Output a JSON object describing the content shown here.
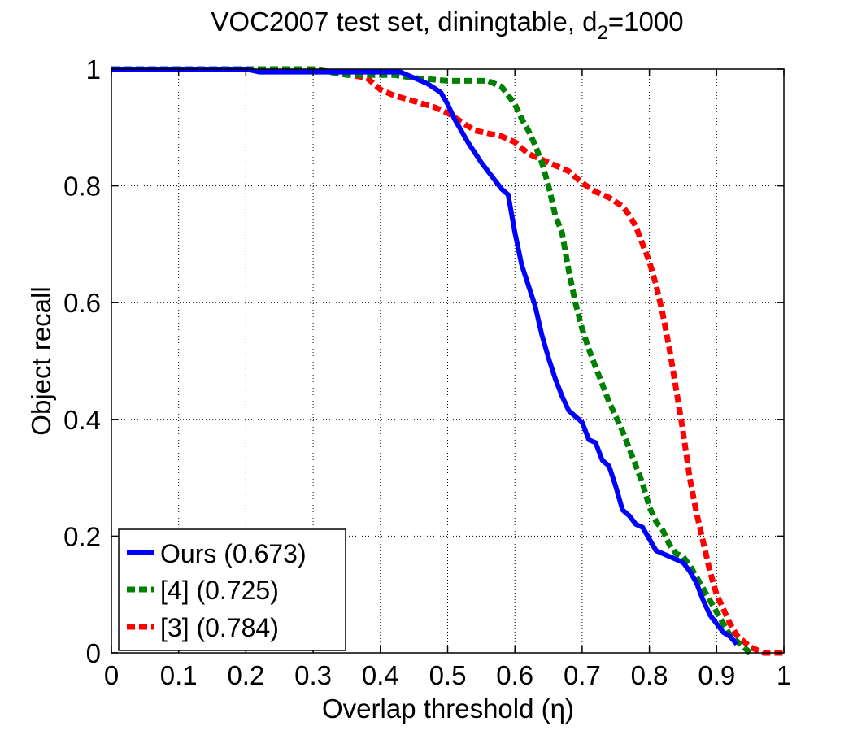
{
  "chart_data": {
    "type": "line",
    "title": "VOC2007 test set, diningtable, d",
    "title_sub": "2",
    "title_suffix": "=1000",
    "xlabel": "Overlap threshold (η)",
    "ylabel": "Object recall",
    "xlim": [
      0,
      1
    ],
    "ylim": [
      0,
      1
    ],
    "grid": true,
    "legend_position": "bottom-left",
    "x_ticks": [
      "0",
      "0.1",
      "0.2",
      "0.3",
      "0.4",
      "0.5",
      "0.6",
      "0.7",
      "0.8",
      "0.9",
      "1"
    ],
    "x_tick_values": [
      0,
      0.1,
      0.2,
      0.3,
      0.4,
      0.5,
      0.6,
      0.7,
      0.8,
      0.9,
      1
    ],
    "y_ticks": [
      "0",
      "0.2",
      "0.4",
      "0.6",
      "0.8",
      "1"
    ],
    "y_tick_values": [
      0,
      0.2,
      0.4,
      0.6,
      0.8,
      1
    ],
    "series": [
      {
        "name": "Ours",
        "legend_label": "Ours (0.673)",
        "color": "#0000ff",
        "style": "solid",
        "x": [
          0,
          0.2,
          0.22,
          0.3,
          0.43,
          0.45,
          0.47,
          0.49,
          0.5,
          0.51,
          0.53,
          0.55,
          0.57,
          0.58,
          0.59,
          0.6,
          0.61,
          0.62,
          0.63,
          0.64,
          0.65,
          0.66,
          0.67,
          0.68,
          0.69,
          0.7,
          0.71,
          0.72,
          0.73,
          0.74,
          0.75,
          0.76,
          0.77,
          0.78,
          0.79,
          0.8,
          0.81,
          0.82,
          0.84,
          0.85,
          0.86,
          0.87,
          0.88,
          0.89,
          0.9,
          0.91,
          0.92,
          0.93
        ],
        "y": [
          1,
          1,
          0.995,
          0.995,
          0.995,
          0.985,
          0.975,
          0.96,
          0.94,
          0.915,
          0.875,
          0.84,
          0.81,
          0.795,
          0.785,
          0.72,
          0.665,
          0.63,
          0.595,
          0.545,
          0.505,
          0.47,
          0.44,
          0.415,
          0.405,
          0.395,
          0.365,
          0.36,
          0.33,
          0.32,
          0.285,
          0.245,
          0.235,
          0.22,
          0.215,
          0.195,
          0.175,
          0.17,
          0.16,
          0.155,
          0.14,
          0.12,
          0.09,
          0.065,
          0.05,
          0.035,
          0.028,
          0.015
        ]
      },
      {
        "name": "[4]",
        "legend_label": "[4] (0.725)",
        "color": "#008000",
        "style": "dashed",
        "x": [
          0,
          0.3,
          0.35,
          0.42,
          0.45,
          0.5,
          0.56,
          0.58,
          0.59,
          0.6,
          0.61,
          0.62,
          0.63,
          0.64,
          0.65,
          0.66,
          0.67,
          0.68,
          0.69,
          0.7,
          0.71,
          0.72,
          0.73,
          0.74,
          0.75,
          0.76,
          0.77,
          0.78,
          0.79,
          0.8,
          0.81,
          0.82,
          0.83,
          0.84,
          0.85,
          0.86,
          0.87,
          0.88,
          0.89,
          0.9,
          0.91,
          0.92,
          0.93,
          0.94,
          0.95
        ],
        "y": [
          1,
          1,
          0.99,
          0.99,
          0.985,
          0.98,
          0.98,
          0.97,
          0.955,
          0.94,
          0.915,
          0.895,
          0.87,
          0.84,
          0.8,
          0.75,
          0.72,
          0.655,
          0.6,
          0.555,
          0.52,
          0.49,
          0.46,
          0.43,
          0.405,
          0.38,
          0.35,
          0.32,
          0.29,
          0.25,
          0.225,
          0.21,
          0.185,
          0.17,
          0.165,
          0.15,
          0.13,
          0.11,
          0.09,
          0.07,
          0.05,
          0.03,
          0.02,
          0.01,
          0
        ]
      },
      {
        "name": "[3]",
        "legend_label": "[3] (0.784)",
        "color": "#ff0000",
        "style": "dashed",
        "x": [
          0,
          0.3,
          0.38,
          0.4,
          0.42,
          0.45,
          0.48,
          0.5,
          0.52,
          0.54,
          0.56,
          0.58,
          0.6,
          0.62,
          0.64,
          0.66,
          0.68,
          0.7,
          0.72,
          0.74,
          0.76,
          0.77,
          0.78,
          0.79,
          0.8,
          0.81,
          0.82,
          0.83,
          0.84,
          0.85,
          0.86,
          0.87,
          0.88,
          0.89,
          0.9,
          0.91,
          0.92,
          0.93,
          0.94,
          0.95,
          0.96,
          0.97,
          1
        ],
        "y": [
          1,
          1,
          0.985,
          0.965,
          0.955,
          0.945,
          0.935,
          0.925,
          0.91,
          0.895,
          0.89,
          0.885,
          0.875,
          0.855,
          0.845,
          0.835,
          0.825,
          0.805,
          0.79,
          0.78,
          0.765,
          0.75,
          0.73,
          0.7,
          0.67,
          0.63,
          0.58,
          0.52,
          0.45,
          0.38,
          0.3,
          0.24,
          0.19,
          0.14,
          0.1,
          0.075,
          0.05,
          0.03,
          0.02,
          0.01,
          0.005,
          0,
          0
        ]
      }
    ]
  }
}
